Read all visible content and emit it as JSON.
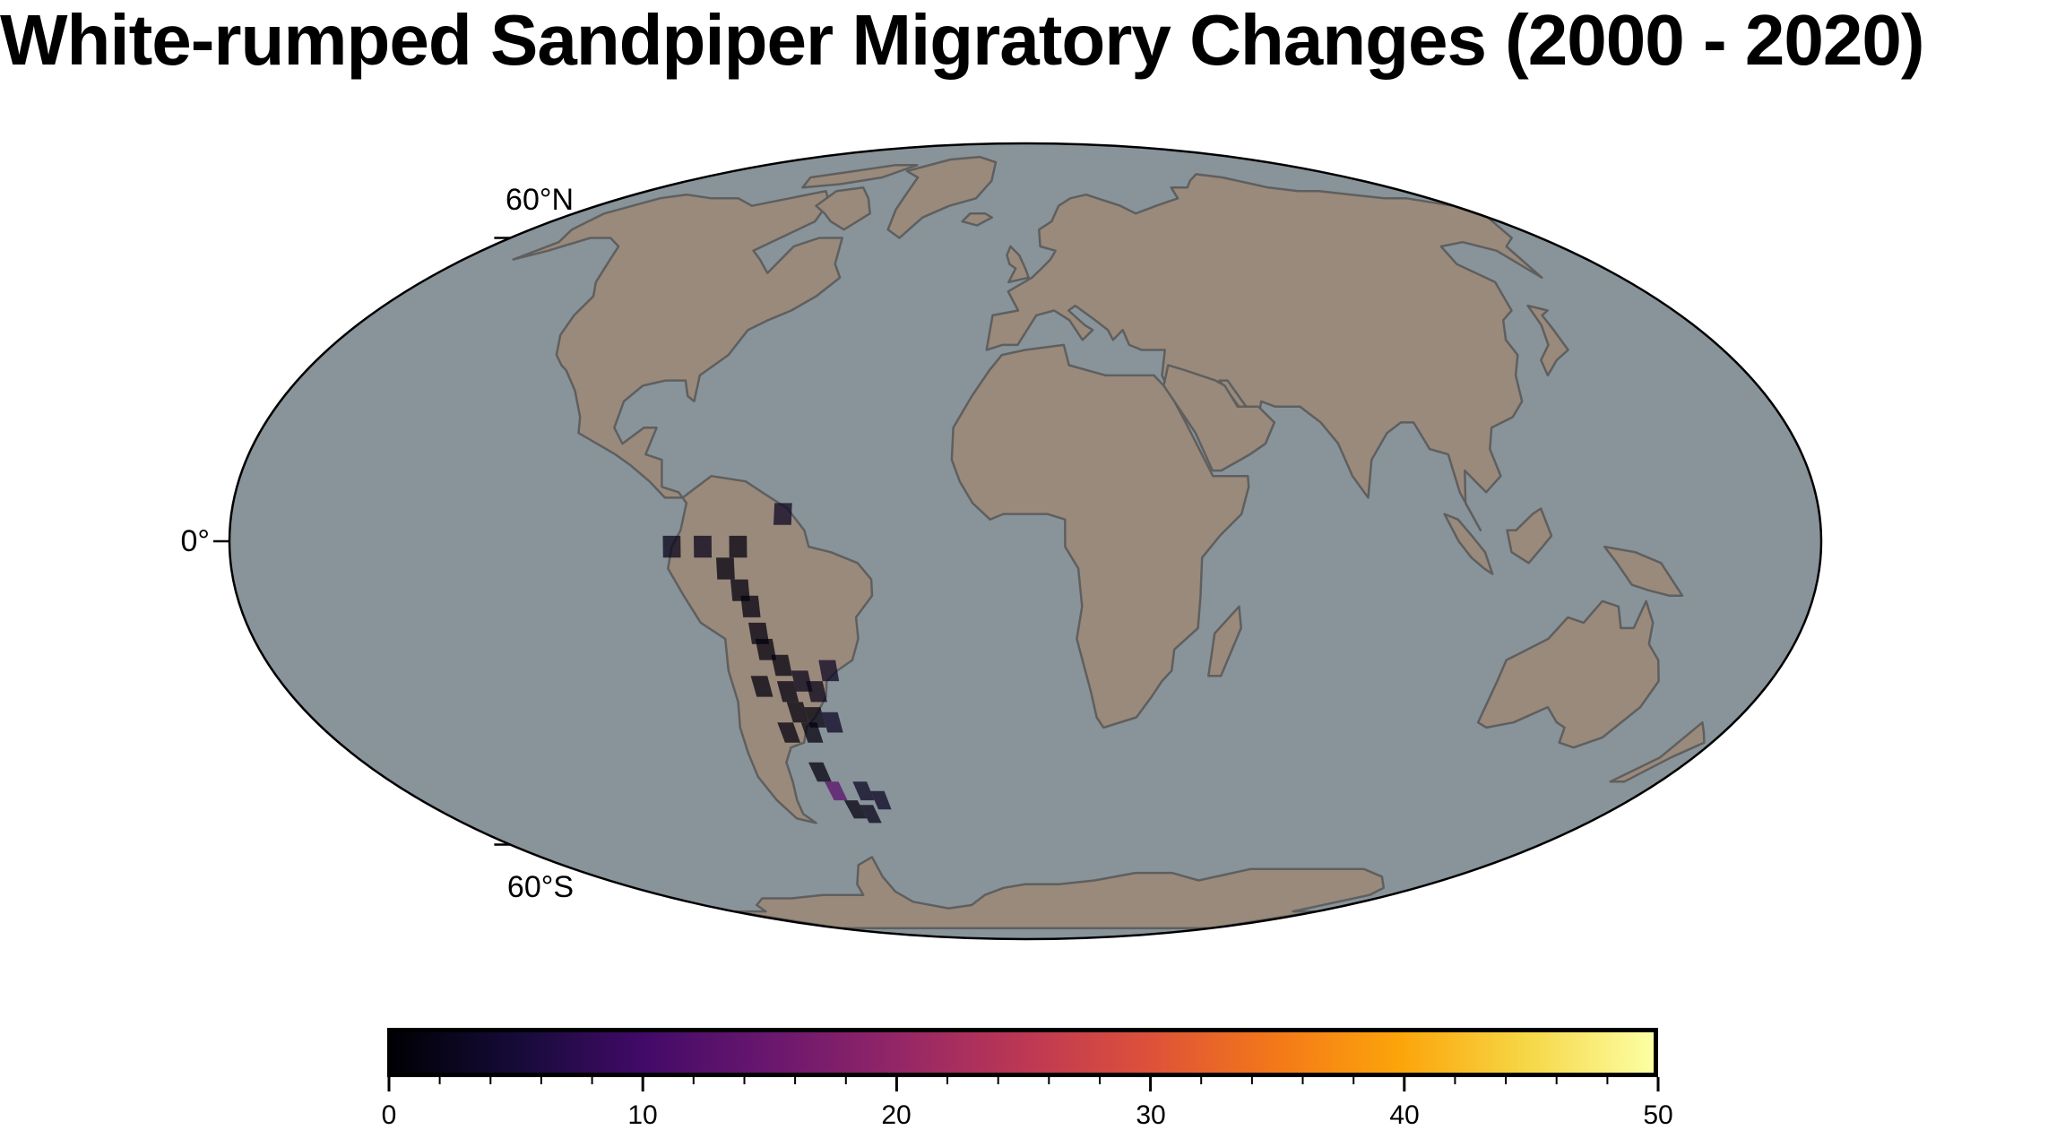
{
  "title": "White-rumped Sandpiper Migratory Changes (2000 - 2020)",
  "map": {
    "projection": "Mollweide",
    "ocean_color": "#88949a",
    "land_color": "#9a8a7c",
    "coast_color": "#5f5f5f",
    "lat_labels": [
      "60°N",
      "0°",
      "60°S"
    ]
  },
  "colorbar": {
    "colormap": "inferno",
    "min": 0,
    "max": 50,
    "tick_labels": [
      "0",
      "10",
      "20",
      "30",
      "40",
      "50"
    ]
  },
  "observation_cells": [
    {
      "lon": -55,
      "lat": 5,
      "value": 3
    },
    {
      "lon": -80,
      "lat": -1,
      "value": 2
    },
    {
      "lon": -73,
      "lat": -1,
      "value": 2
    },
    {
      "lon": -65,
      "lat": -1,
      "value": 1
    },
    {
      "lon": -68,
      "lat": -5,
      "value": 1
    },
    {
      "lon": -65,
      "lat": -9,
      "value": 1
    },
    {
      "lon": -63,
      "lat": -12,
      "value": 1
    },
    {
      "lon": -62,
      "lat": -17,
      "value": 1
    },
    {
      "lon": -61,
      "lat": -20,
      "value": 1
    },
    {
      "lon": -58,
      "lat": -23,
      "value": 1
    },
    {
      "lon": -54,
      "lat": -26,
      "value": 2
    },
    {
      "lon": -47,
      "lat": -24,
      "value": 3
    },
    {
      "lon": -64,
      "lat": -27,
      "value": 1
    },
    {
      "lon": -58,
      "lat": -28,
      "value": 1
    },
    {
      "lon": -51,
      "lat": -28,
      "value": 2
    },
    {
      "lon": -57,
      "lat": -32,
      "value": 1
    },
    {
      "lon": -53,
      "lat": -33,
      "value": 1
    },
    {
      "lon": -49,
      "lat": -34,
      "value": 3
    },
    {
      "lon": -61,
      "lat": -36,
      "value": 1
    },
    {
      "lon": -55,
      "lat": -36,
      "value": 1
    },
    {
      "lon": -57,
      "lat": -44,
      "value": 1
    },
    {
      "lon": -55,
      "lat": -48,
      "value": 13
    },
    {
      "lon": -47,
      "lat": -48,
      "value": 3
    },
    {
      "lon": -43,
      "lat": -50,
      "value": 3
    },
    {
      "lon": -52,
      "lat": -52,
      "value": 1
    },
    {
      "lon": -48,
      "lat": -53,
      "value": 2
    }
  ]
}
